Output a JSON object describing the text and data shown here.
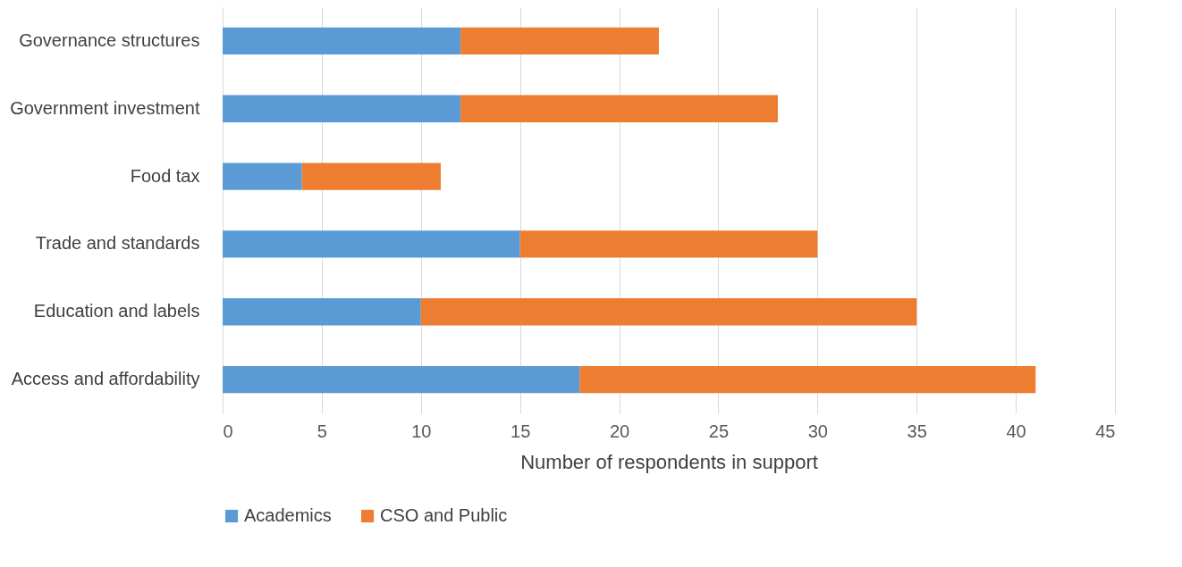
{
  "chart_data": {
    "type": "bar",
    "orientation": "horizontal",
    "stacked": true,
    "categories": [
      "Governance structures",
      "Government investment",
      "Food tax",
      "Trade and standards",
      "Education and labels",
      "Access and affordability"
    ],
    "series": [
      {
        "name": "Academics",
        "color": "#5b9bd5",
        "values": [
          12,
          12,
          4,
          15,
          10,
          18
        ]
      },
      {
        "name": "CSO and Public",
        "color": "#ed7d31",
        "values": [
          10,
          16,
          7,
          15,
          25,
          23
        ]
      }
    ],
    "xlabel": "Number of respondents in support",
    "xlim": [
      0,
      45
    ],
    "xticks": [
      0,
      5,
      10,
      15,
      20,
      25,
      30,
      35,
      40,
      45
    ],
    "grid": "x",
    "legend": "bottom"
  }
}
